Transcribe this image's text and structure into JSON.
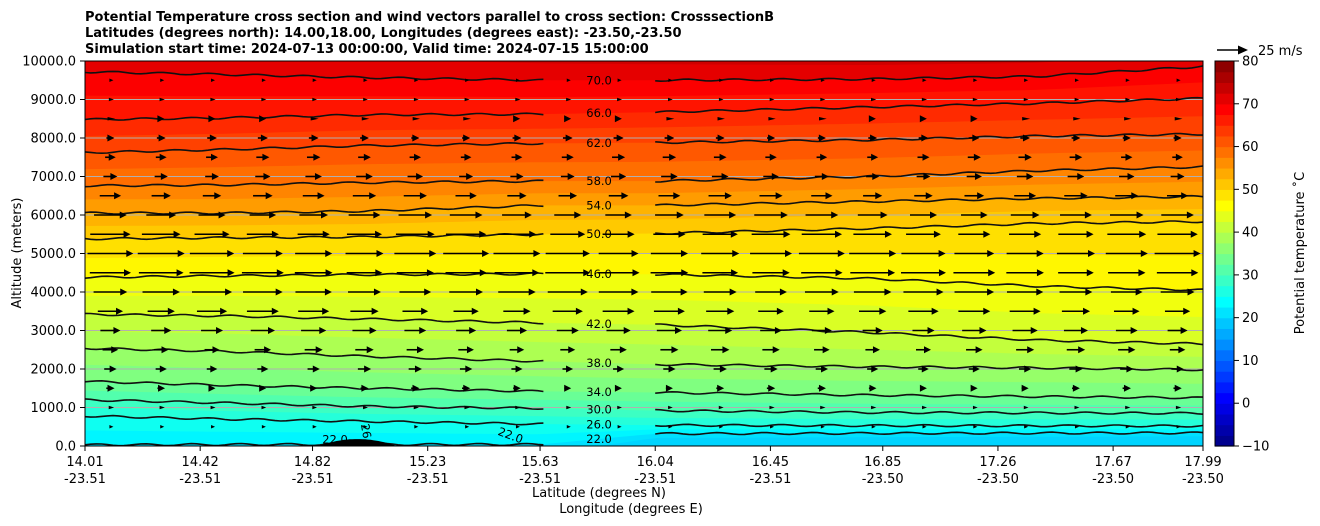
{
  "chart_data": {
    "type": "heatmap",
    "title_lines": [
      "Potential Temperature cross section and wind vectors parallel to cross section: CrosssectionB",
      "Latitudes (degrees north): 14.00,18.00, Longitudes (degrees east): -23.50,-23.50",
      "Simulation start time: 2024-07-13 00:00:00, Valid time: 2024-07-15 15:00:00"
    ],
    "xlabel_lat": "Latitude (degrees N)",
    "xlabel_lon": "Longitude (degrees E)",
    "ylabel": "Altitude (meters)",
    "x_ticks_lat": [
      "14.01",
      "14.42",
      "14.82",
      "15.23",
      "15.63",
      "16.04",
      "16.45",
      "16.85",
      "17.26",
      "17.67",
      "17.99"
    ],
    "x_ticks_lon": [
      "-23.51",
      "-23.51",
      "-23.51",
      "-23.51",
      "-23.51",
      "-23.51",
      "-23.51",
      "-23.50",
      "-23.50",
      "-23.50",
      "-23.50"
    ],
    "x_lat_values": [
      14.01,
      14.42,
      14.82,
      15.23,
      15.63,
      16.04,
      16.45,
      16.85,
      17.26,
      17.67,
      17.99
    ],
    "y_ticks": [
      "0.0",
      "1000.0",
      "2000.0",
      "3000.0",
      "4000.0",
      "5000.0",
      "6000.0",
      "7000.0",
      "8000.0",
      "9000.0",
      "10000.0"
    ],
    "ylim": [
      0,
      10000
    ],
    "xlim": [
      14.01,
      17.99
    ],
    "grid": "horizontal",
    "colorbar": {
      "label": "Potential temperature ˚C",
      "range": [
        -10,
        80
      ],
      "ticks": [
        "−10",
        "0",
        "10",
        "20",
        "30",
        "40",
        "50",
        "60",
        "70",
        "80"
      ],
      "tick_values": [
        -10,
        0,
        10,
        20,
        30,
        40,
        50,
        60,
        70,
        80
      ],
      "colormap": "jet"
    },
    "quiver_key": "25 m/s",
    "contours": [
      {
        "level": "22.0",
        "value": 22,
        "pts": [
          [
            14.01,
            30
          ],
          [
            14.6,
            40
          ],
          [
            15.1,
            40
          ],
          [
            15.63,
            40
          ],
          [
            16.04,
            320
          ],
          [
            16.8,
            330
          ],
          [
            17.99,
            340
          ]
        ]
      },
      {
        "level": "26.0",
        "value": 26,
        "pts": [
          [
            14.01,
            780
          ],
          [
            14.5,
            700
          ],
          [
            15.0,
            640
          ],
          [
            15.63,
            570
          ],
          [
            16.04,
            540
          ],
          [
            16.8,
            530
          ],
          [
            17.99,
            520
          ]
        ]
      },
      {
        "level": "30.0",
        "value": 30,
        "pts": [
          [
            14.01,
            1200
          ],
          [
            14.5,
            1120
          ],
          [
            15.0,
            1030
          ],
          [
            15.63,
            980
          ],
          [
            16.04,
            920
          ],
          [
            16.8,
            870
          ],
          [
            17.99,
            850
          ]
        ]
      },
      {
        "level": "34.0",
        "value": 34,
        "pts": [
          [
            14.01,
            1680
          ],
          [
            14.5,
            1580
          ],
          [
            15.0,
            1500
          ],
          [
            15.63,
            1420
          ],
          [
            16.04,
            1390
          ],
          [
            16.8,
            1320
          ],
          [
            17.99,
            1250
          ]
        ]
      },
      {
        "level": "38.0",
        "value": 38,
        "pts": [
          [
            14.01,
            2540
          ],
          [
            14.5,
            2460
          ],
          [
            15.0,
            2330
          ],
          [
            15.63,
            2200
          ],
          [
            16.04,
            2120
          ],
          [
            16.8,
            2060
          ],
          [
            17.4,
            2030
          ],
          [
            17.99,
            1980
          ]
        ]
      },
      {
        "level": "42.0",
        "value": 42,
        "pts": [
          [
            14.01,
            3420
          ],
          [
            14.5,
            3380
          ],
          [
            15.0,
            3300
          ],
          [
            15.63,
            3200
          ],
          [
            16.04,
            3150
          ],
          [
            16.8,
            2950
          ],
          [
            17.4,
            2750
          ],
          [
            17.99,
            2650
          ]
        ]
      },
      {
        "level": "46.0",
        "value": 46,
        "pts": [
          [
            14.01,
            4380
          ],
          [
            14.5,
            4420
          ],
          [
            15.0,
            4450
          ],
          [
            15.63,
            4470
          ],
          [
            16.04,
            4460
          ],
          [
            16.8,
            4350
          ],
          [
            17.4,
            4150
          ],
          [
            17.99,
            4050
          ]
        ]
      },
      {
        "level": "50.0",
        "value": 50,
        "pts": [
          [
            14.01,
            5380
          ],
          [
            14.5,
            5410
          ],
          [
            15.0,
            5430
          ],
          [
            15.63,
            5500
          ],
          [
            16.04,
            5520
          ],
          [
            16.8,
            5650
          ],
          [
            17.4,
            5780
          ],
          [
            17.99,
            5830
          ]
        ]
      },
      {
        "level": "54.0",
        "value": 54,
        "pts": [
          [
            14.01,
            6050
          ],
          [
            14.5,
            6050
          ],
          [
            15.0,
            6100
          ],
          [
            15.63,
            6250
          ],
          [
            16.04,
            6250
          ],
          [
            16.8,
            6350
          ],
          [
            17.4,
            6430
          ],
          [
            17.99,
            6480
          ]
        ]
      },
      {
        "level": "58.0",
        "value": 58,
        "pts": [
          [
            14.01,
            6760
          ],
          [
            14.5,
            6780
          ],
          [
            15.0,
            6840
          ],
          [
            15.63,
            6880
          ],
          [
            16.04,
            6880
          ],
          [
            16.8,
            7000
          ],
          [
            17.4,
            7150
          ],
          [
            17.99,
            7250
          ]
        ]
      },
      {
        "level": "62.0",
        "value": 62,
        "pts": [
          [
            14.01,
            7620
          ],
          [
            14.5,
            7700
          ],
          [
            15.0,
            7800
          ],
          [
            15.63,
            7860
          ],
          [
            16.04,
            7880
          ],
          [
            16.8,
            7950
          ],
          [
            17.4,
            8050
          ],
          [
            17.99,
            8100
          ]
        ]
      },
      {
        "level": "66.0",
        "value": 66,
        "pts": [
          [
            14.01,
            8480
          ],
          [
            14.5,
            8520
          ],
          [
            15.0,
            8600
          ],
          [
            15.63,
            8620
          ],
          [
            16.04,
            8670
          ],
          [
            16.8,
            8800
          ],
          [
            17.4,
            8900
          ],
          [
            17.99,
            9030
          ]
        ]
      },
      {
        "level": "70.0",
        "value": 70,
        "pts": [
          [
            14.01,
            9720
          ],
          [
            14.5,
            9650
          ],
          [
            15.0,
            9570
          ],
          [
            15.63,
            9500
          ],
          [
            16.04,
            9500
          ],
          [
            16.8,
            9530
          ],
          [
            17.4,
            9600
          ],
          [
            17.99,
            9860
          ]
        ]
      }
    ],
    "inline_labels": [
      {
        "text": "22.0",
        "x": 14.9,
        "y": 60,
        "rot": 0
      },
      {
        "text": "26.0",
        "x": 15.0,
        "y": 230,
        "rot": 80
      },
      {
        "text": "22.0",
        "x": 15.52,
        "y": 180,
        "rot": 20
      }
    ],
    "wind_profile": [
      {
        "y": 500,
        "speed": 0.5
      },
      {
        "y": 1000,
        "speed": 1.0
      },
      {
        "y": 1500,
        "speed": 2.5
      },
      {
        "y": 2000,
        "speed": 4.0
      },
      {
        "y": 2500,
        "speed": 5.5
      },
      {
        "y": 3000,
        "speed": 7.5
      },
      {
        "y": 3500,
        "speed": 9.5
      },
      {
        "y": 4000,
        "speed": 12.0
      },
      {
        "y": 4500,
        "speed": 13.5
      },
      {
        "y": 5000,
        "speed": 14.0
      },
      {
        "y": 5500,
        "speed": 12.0
      },
      {
        "y": 6000,
        "speed": 10.0
      },
      {
        "y": 6500,
        "speed": 7.0
      },
      {
        "y": 7000,
        "speed": 5.0
      },
      {
        "y": 7500,
        "speed": 4.0
      },
      {
        "y": 8000,
        "speed": 3.0
      },
      {
        "y": 8500,
        "speed": 2.0
      },
      {
        "y": 9000,
        "speed": 1.0
      },
      {
        "y": 9500,
        "speed": 0.5
      }
    ],
    "terrain": {
      "center": 14.98,
      "halfwidth": 0.14,
      "height": 180
    }
  }
}
